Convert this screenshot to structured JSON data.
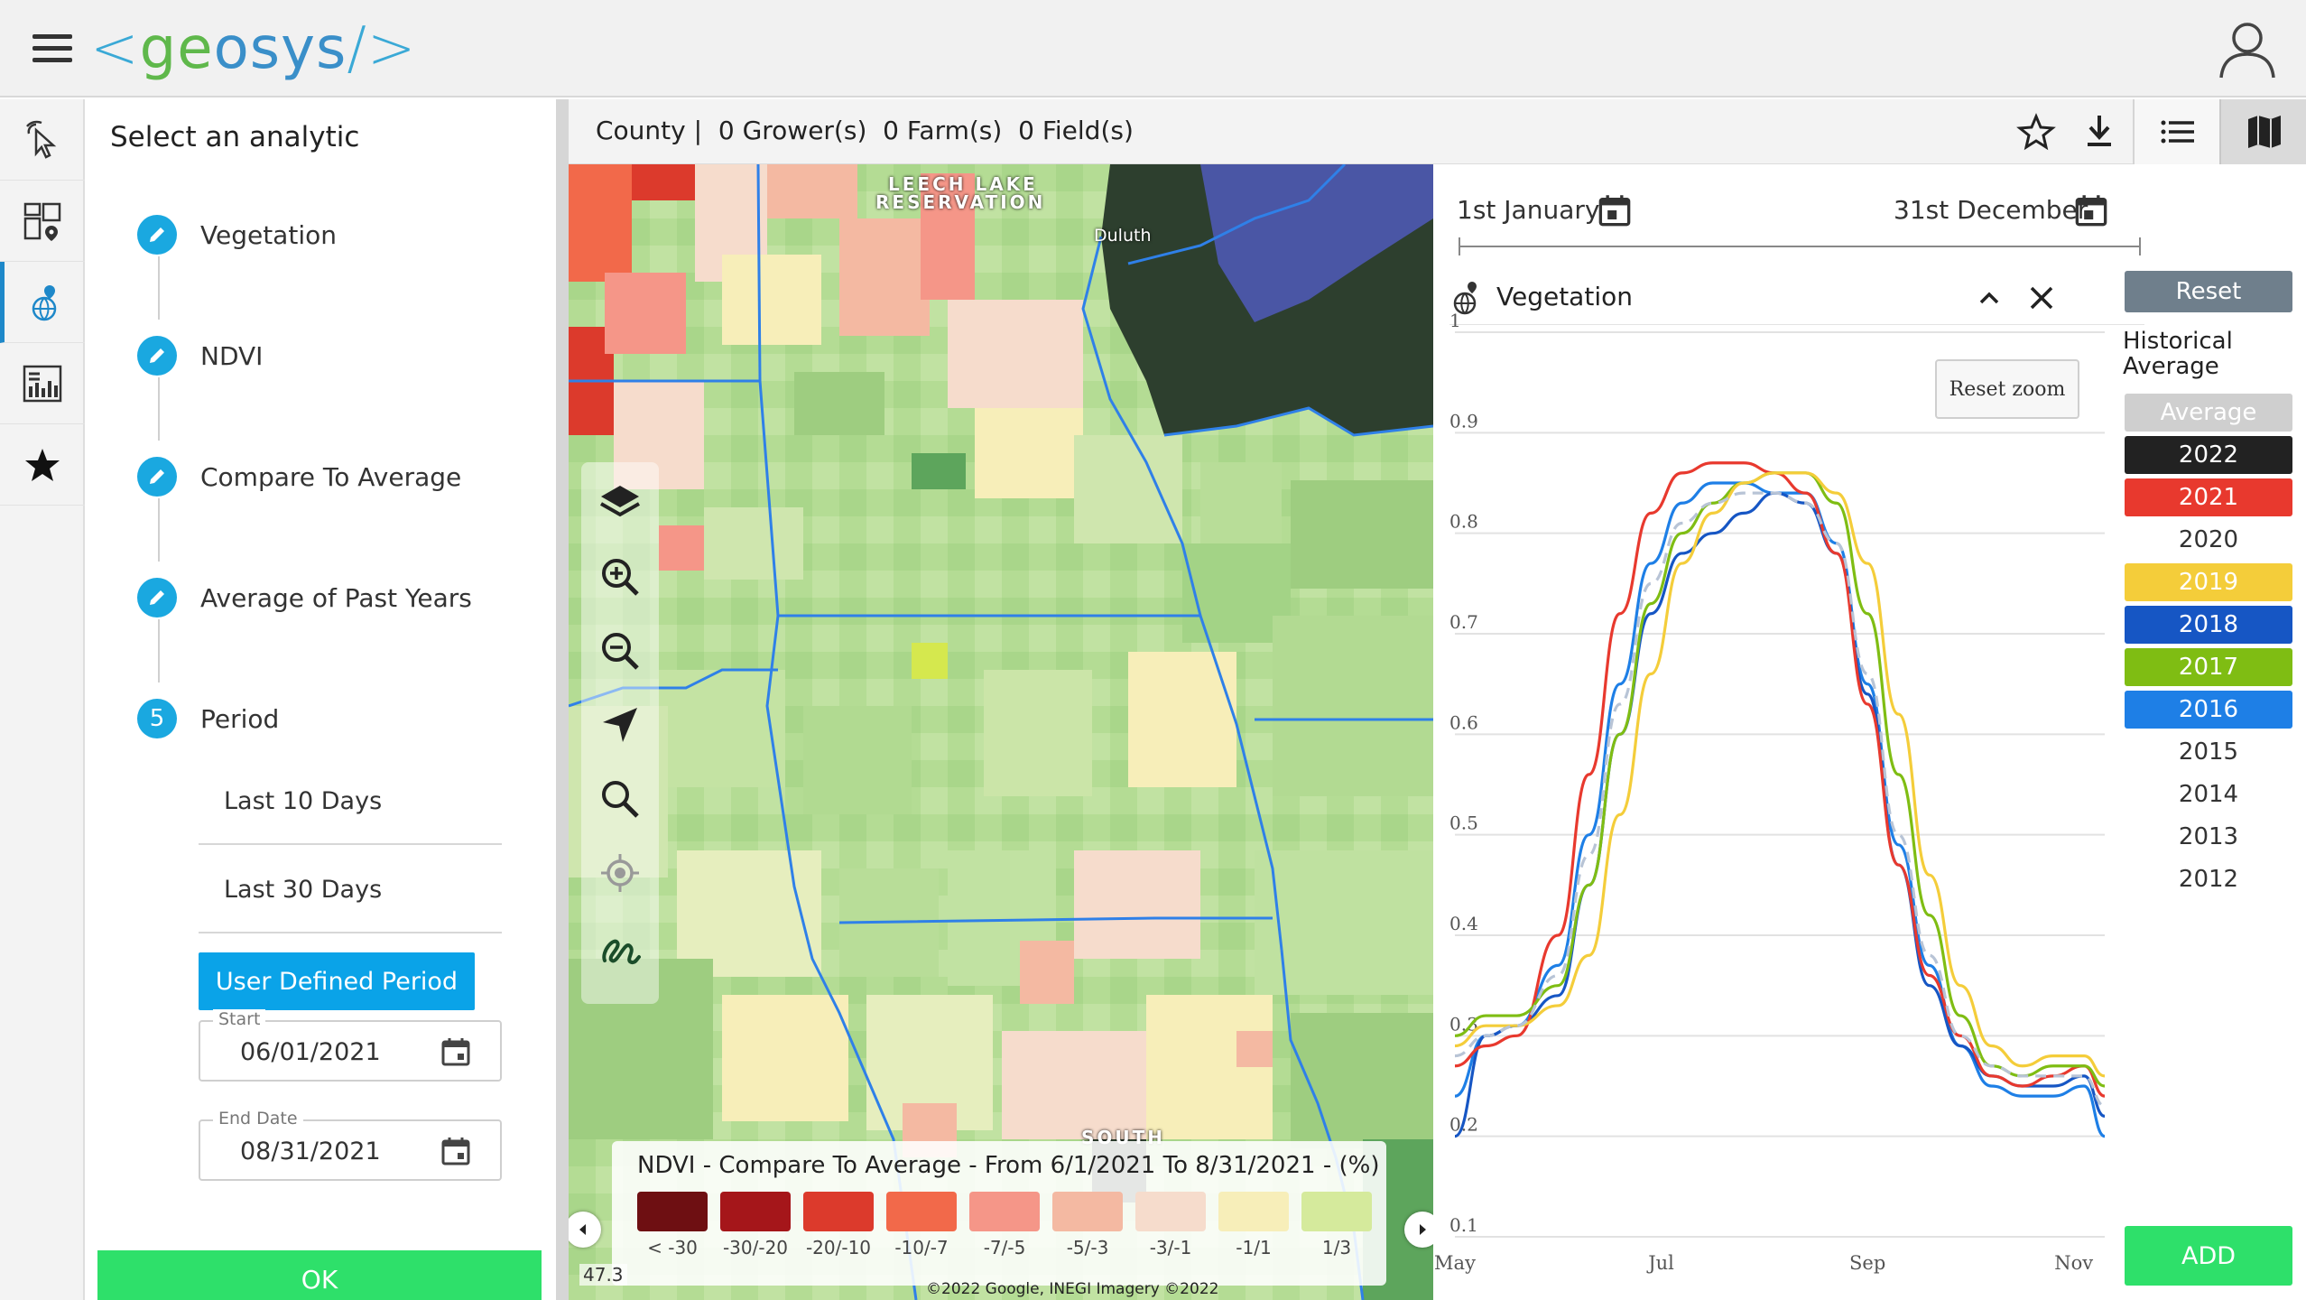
{
  "app": {
    "logo_left": "<",
    "logo_text_g": "ge",
    "logo_text_o": "o",
    "logo_text_sys": "sys",
    "logo_right": "/>"
  },
  "rail": {
    "icons": [
      "pointer-click-icon",
      "dashboard-map-icon",
      "globe-pin-icon",
      "report-chart-icon",
      "star-icon"
    ],
    "active_index": 2,
    "accent": "#1e88c9"
  },
  "analytic": {
    "title": "Select an analytic",
    "steps": [
      {
        "label": "Vegetation",
        "marker": "pencil-icon"
      },
      {
        "label": "NDVI",
        "marker": "pencil-icon"
      },
      {
        "label": "Compare To Average",
        "marker": "pencil-icon"
      },
      {
        "label": "Average of Past Years",
        "marker": "pencil-icon"
      },
      {
        "label": "Period",
        "number": "5"
      }
    ],
    "period_options": [
      "Last 10 Days",
      "Last 30 Days"
    ],
    "user_defined": "User Defined Period",
    "start": {
      "label": "Start",
      "value": "06/01/2021"
    },
    "end": {
      "label": "End Date",
      "value": "08/31/2021"
    },
    "ok": "OK",
    "accent": "#1aa8e0"
  },
  "header": {
    "crumbs": "County |  0 Grower(s)  0 Farm(s)  0 Field(s)"
  },
  "map": {
    "places": [
      "LEECH LAKE",
      "RESERVATION",
      "Duluth",
      "SOUTH"
    ],
    "legend": {
      "title": "NDVI - Compare To Average - From 6/1/2021 To 8/31/2021 - (%)",
      "items": [
        {
          "label": "< -30",
          "color": "#6e0f12"
        },
        {
          "label": "-30/-20",
          "color": "#a5161a"
        },
        {
          "label": "-20/-10",
          "color": "#dc3a2c"
        },
        {
          "label": "-10/-7",
          "color": "#f2694a"
        },
        {
          "label": "-7/-5",
          "color": "#f59688"
        },
        {
          "label": "-5/-3",
          "color": "#f4b9a2"
        },
        {
          "label": "-3/-1",
          "color": "#f6dccc"
        },
        {
          "label": "-1/1",
          "color": "#f7eeb9"
        },
        {
          "label": "1/3",
          "color": "#d5ea9c"
        }
      ]
    },
    "scale": "47.3",
    "credit": "©2022 Google, INEGI Imagery ©2022"
  },
  "chart_panel": {
    "date_start": "1st January",
    "date_end": "31st December",
    "analytic_label": "Vegetation",
    "reset_zoom": "Reset zoom",
    "reset": "Reset",
    "hist_title": "Historical Average",
    "years": [
      {
        "label": "Average",
        "bg": "#cfcfcf",
        "fg": "#ffffff"
      },
      {
        "label": "2022",
        "bg": "#222222",
        "fg": "#ffffff"
      },
      {
        "label": "2021",
        "bg": "#e8392e",
        "fg": "#ffffff"
      },
      {
        "label": "2020",
        "bg": "",
        "fg": "#333333"
      },
      {
        "label": "2019",
        "bg": "#f4cd3a",
        "fg": "#ffffff"
      },
      {
        "label": "2018",
        "bg": "#1656c4",
        "fg": "#ffffff"
      },
      {
        "label": "2017",
        "bg": "#7fbd13",
        "fg": "#ffffff"
      },
      {
        "label": "2016",
        "bg": "#1e7fe6",
        "fg": "#ffffff"
      },
      {
        "label": "2015",
        "bg": "",
        "fg": "#333333"
      },
      {
        "label": "2014",
        "bg": "",
        "fg": "#333333"
      },
      {
        "label": "2013",
        "bg": "",
        "fg": "#333333"
      },
      {
        "label": "2012",
        "bg": "",
        "fg": "#333333"
      }
    ],
    "add": "ADD"
  },
  "chart_data": {
    "type": "line",
    "title": "",
    "xlabel": "",
    "ylabel": "",
    "x_ticks": [
      "May",
      "Jul",
      "Sep",
      "Nov"
    ],
    "y_ticks": [
      "1",
      "0.9",
      "0.8",
      "0.7",
      "0.6",
      "0.5",
      "0.4",
      "0.3",
      "0.2",
      "0.1"
    ],
    "ylim": [
      0.1,
      1.0
    ],
    "x_domain_month": [
      5.0,
      11.3
    ],
    "grid": true,
    "series": [
      {
        "color": "#1e7fe6",
        "dash": false,
        "x": [
          5.0,
          5.3,
          5.6,
          6.0,
          6.3,
          6.6,
          6.9,
          7.2,
          7.5,
          7.8,
          8.1,
          8.4,
          8.7,
          9.0,
          9.3,
          9.6,
          9.9,
          10.2,
          10.5,
          10.8,
          11.1,
          11.3
        ],
        "y": [
          0.24,
          0.3,
          0.31,
          0.37,
          0.5,
          0.65,
          0.77,
          0.83,
          0.85,
          0.85,
          0.84,
          0.84,
          0.79,
          0.65,
          0.49,
          0.37,
          0.29,
          0.25,
          0.24,
          0.24,
          0.25,
          0.2
        ]
      },
      {
        "color": "#1656c4",
        "dash": false,
        "x": [
          5.0,
          5.3,
          5.6,
          6.0,
          6.3,
          6.6,
          6.9,
          7.2,
          7.5,
          7.8,
          8.1,
          8.4,
          8.7,
          9.0,
          9.3,
          9.6,
          9.9,
          10.2,
          10.5,
          10.8,
          11.1,
          11.3
        ],
        "y": [
          0.2,
          0.3,
          0.31,
          0.34,
          0.45,
          0.6,
          0.72,
          0.78,
          0.8,
          0.82,
          0.84,
          0.83,
          0.78,
          0.64,
          0.47,
          0.35,
          0.29,
          0.26,
          0.25,
          0.25,
          0.26,
          0.22
        ]
      },
      {
        "color": "#e8392e",
        "dash": false,
        "x": [
          5.0,
          5.3,
          5.6,
          6.0,
          6.3,
          6.6,
          6.9,
          7.2,
          7.5,
          7.8,
          8.1,
          8.4,
          8.7,
          9.0,
          9.3,
          9.6,
          9.9,
          10.2,
          10.5,
          10.8,
          11.1,
          11.3
        ],
        "y": [
          0.27,
          0.29,
          0.3,
          0.4,
          0.56,
          0.72,
          0.82,
          0.86,
          0.87,
          0.87,
          0.86,
          0.84,
          0.78,
          0.63,
          0.47,
          0.36,
          0.3,
          0.26,
          0.25,
          0.26,
          0.27,
          0.24
        ]
      },
      {
        "color": "#7fbd13",
        "dash": false,
        "x": [
          5.0,
          5.3,
          5.6,
          6.0,
          6.3,
          6.6,
          6.9,
          7.2,
          7.5,
          7.8,
          8.1,
          8.4,
          8.7,
          9.0,
          9.3,
          9.6,
          9.9,
          10.2,
          10.5,
          10.8,
          11.1,
          11.3
        ],
        "y": [
          0.3,
          0.32,
          0.32,
          0.35,
          0.45,
          0.6,
          0.73,
          0.8,
          0.83,
          0.85,
          0.86,
          0.86,
          0.83,
          0.72,
          0.56,
          0.42,
          0.32,
          0.27,
          0.26,
          0.27,
          0.27,
          0.25
        ]
      },
      {
        "color": "#f4cd3a",
        "dash": false,
        "x": [
          5.0,
          5.3,
          5.6,
          6.0,
          6.3,
          6.6,
          6.9,
          7.2,
          7.5,
          7.8,
          8.1,
          8.4,
          8.7,
          9.0,
          9.3,
          9.6,
          9.9,
          10.2,
          10.5,
          10.8,
          11.1,
          11.3
        ],
        "y": [
          0.29,
          0.31,
          0.31,
          0.33,
          0.38,
          0.52,
          0.66,
          0.77,
          0.82,
          0.85,
          0.86,
          0.86,
          0.84,
          0.77,
          0.62,
          0.46,
          0.35,
          0.29,
          0.27,
          0.28,
          0.28,
          0.26
        ]
      },
      {
        "color": "#b8c4d6",
        "dash": true,
        "x": [
          5.0,
          5.3,
          5.6,
          6.0,
          6.3,
          6.6,
          6.9,
          7.2,
          7.5,
          7.8,
          8.1,
          8.4,
          8.7,
          9.0,
          9.3,
          9.6,
          9.9,
          10.2,
          10.5,
          10.8,
          11.1,
          11.3
        ],
        "y": [
          0.28,
          0.3,
          0.31,
          0.36,
          0.48,
          0.63,
          0.75,
          0.81,
          0.83,
          0.84,
          0.84,
          0.83,
          0.79,
          0.66,
          0.5,
          0.38,
          0.3,
          0.27,
          0.26,
          0.26,
          0.26,
          0.23
        ]
      }
    ]
  }
}
